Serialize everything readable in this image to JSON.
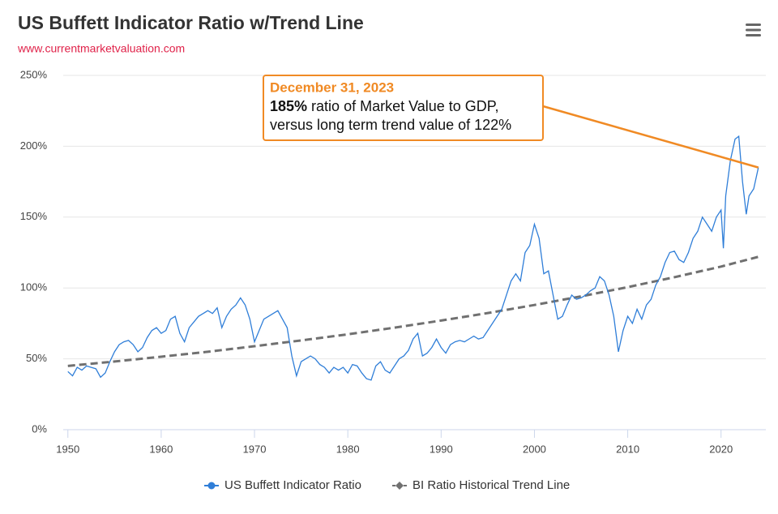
{
  "chart_data": {
    "type": "line",
    "title": "US Buffett Indicator Ratio w/Trend Line",
    "subtitle": "www.currentmarketvaluation.com",
    "xlim": [
      1949.5,
      2024.8
    ],
    "xticks": [
      1950,
      1960,
      1970,
      1980,
      1990,
      2000,
      2010,
      2020
    ],
    "ylim": [
      0,
      250
    ],
    "yticks": [
      {
        "value": 0,
        "label": "0%"
      },
      {
        "value": 50,
        "label": "50%"
      },
      {
        "value": 100,
        "label": "100%"
      },
      {
        "value": 150,
        "label": "150%"
      },
      {
        "value": 200,
        "label": "200%"
      },
      {
        "value": 250,
        "label": "250%"
      }
    ],
    "grid": true,
    "legend": "bottom",
    "series": [
      {
        "name": "US Buffett Indicator Ratio",
        "color": "#2f7ed8",
        "dashed": false,
        "x": [
          1950,
          1950.5,
          1951,
          1951.5,
          1952,
          1952.5,
          1953,
          1953.5,
          1954,
          1954.5,
          1955,
          1955.5,
          1956,
          1956.5,
          1957,
          1957.5,
          1958,
          1958.5,
          1959,
          1959.5,
          1960,
          1960.5,
          1961,
          1961.5,
          1962,
          1962.5,
          1963,
          1963.5,
          1964,
          1964.5,
          1965,
          1965.5,
          1966,
          1966.5,
          1967,
          1967.5,
          1968,
          1968.5,
          1969,
          1969.5,
          1970,
          1970.5,
          1971,
          1971.5,
          1972,
          1972.5,
          1973,
          1973.5,
          1974,
          1974.5,
          1975,
          1975.5,
          1976,
          1976.5,
          1977,
          1977.5,
          1978,
          1978.5,
          1979,
          1979.5,
          1980,
          1980.5,
          1981,
          1981.5,
          1982,
          1982.5,
          1983,
          1983.5,
          1984,
          1984.5,
          1985,
          1985.5,
          1986,
          1986.5,
          1987,
          1987.5,
          1988,
          1988.5,
          1989,
          1989.5,
          1990,
          1990.5,
          1991,
          1991.5,
          1992,
          1992.5,
          1993,
          1993.5,
          1994,
          1994.5,
          1995,
          1995.5,
          1996,
          1996.5,
          1997,
          1997.5,
          1998,
          1998.5,
          1999,
          1999.5,
          2000,
          2000.5,
          2001,
          2001.5,
          2002,
          2002.5,
          2003,
          2003.5,
          2004,
          2004.5,
          2005,
          2005.5,
          2006,
          2006.5,
          2007,
          2007.5,
          2008,
          2008.5,
          2009,
          2009.5,
          2010,
          2010.5,
          2011,
          2011.5,
          2012,
          2012.5,
          2013,
          2013.5,
          2014,
          2014.5,
          2015,
          2015.5,
          2016,
          2016.5,
          2017,
          2017.5,
          2018,
          2018.5,
          2019,
          2019.5,
          2020,
          2020.25,
          2020.5,
          2021,
          2021.5,
          2021.9,
          2022.3,
          2022.7,
          2023,
          2023.5,
          2024
        ],
        "values": [
          41,
          38,
          44,
          42,
          45,
          44,
          43,
          37,
          40,
          48,
          55,
          60,
          62,
          63,
          60,
          55,
          58,
          65,
          70,
          72,
          68,
          70,
          78,
          80,
          68,
          62,
          72,
          76,
          80,
          82,
          84,
          82,
          86,
          72,
          80,
          85,
          88,
          93,
          88,
          78,
          62,
          70,
          78,
          80,
          82,
          84,
          78,
          72,
          52,
          38,
          48,
          50,
          52,
          50,
          46,
          44,
          40,
          44,
          42,
          44,
          40,
          46,
          45,
          40,
          36,
          35,
          45,
          48,
          42,
          40,
          45,
          50,
          52,
          56,
          64,
          68,
          52,
          54,
          58,
          64,
          58,
          54,
          60,
          62,
          63,
          62,
          64,
          66,
          64,
          65,
          70,
          75,
          80,
          85,
          95,
          105,
          110,
          105,
          125,
          130,
          145,
          135,
          110,
          112,
          95,
          78,
          80,
          88,
          95,
          92,
          93,
          95,
          98,
          100,
          108,
          105,
          95,
          80,
          55,
          70,
          80,
          75,
          85,
          78,
          88,
          92,
          102,
          108,
          118,
          125,
          126,
          120,
          118,
          125,
          135,
          140,
          150,
          145,
          140,
          150,
          155,
          128,
          165,
          190,
          205,
          207,
          175,
          152,
          165,
          170,
          185
        ]
      },
      {
        "name": "BI Ratio Historical Trend Line",
        "color": "#707070",
        "dashed": true,
        "x": [
          1950,
          1955,
          1960,
          1965,
          1970,
          1975,
          1980,
          1985,
          1990,
          1995,
          2000,
          2005,
          2010,
          2015,
          2020,
          2024
        ],
        "values": [
          45,
          48.1,
          51.5,
          55.0,
          58.9,
          63.0,
          67.3,
          72.0,
          77.0,
          82.3,
          88.0,
          94.1,
          100.6,
          107.6,
          115.1,
          122
        ]
      }
    ],
    "annotation": {
      "date": "December 31, 2023",
      "value": "185%",
      "line1": "ratio of Market Value to GDP,",
      "line2": "versus long term trend value of 122%",
      "color": "#f08a24"
    }
  }
}
